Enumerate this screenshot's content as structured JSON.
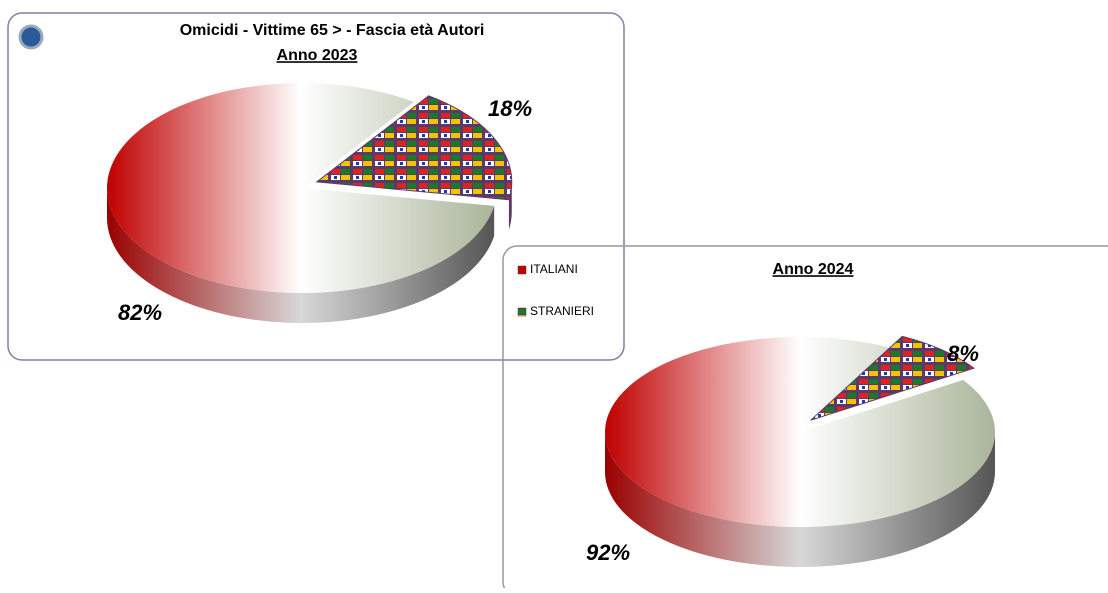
{
  "chart_data": [
    {
      "type": "pie",
      "title": "Omicidi - Vittime 65 > - Fascia età Autori",
      "subtitle": "Anno 2023",
      "values": [
        82,
        18
      ],
      "value_labels": [
        "82%",
        "18%"
      ],
      "colors": [
        "#c00000",
        "#5a3a6a"
      ]
    },
    {
      "type": "pie",
      "subtitle": "Anno 2024",
      "categories": [
        "ITALIANI",
        "STRANIERI"
      ],
      "values": [
        92,
        8
      ],
      "value_labels": [
        "92%",
        "8%"
      ],
      "colors": [
        "#c00000",
        "#5a3a6a"
      ]
    }
  ]
}
